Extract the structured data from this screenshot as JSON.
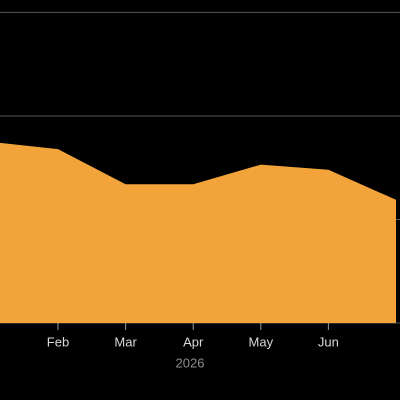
{
  "chart_data": {
    "type": "area",
    "categories": [
      null,
      "Feb",
      "Mar",
      "Apr",
      "May",
      "Jun",
      null
    ],
    "values": [
      175,
      168,
      134,
      134,
      153,
      148,
      119
    ],
    "color": "#f2a33a",
    "ylim": [
      0,
      312
    ],
    "yticks": [
      0,
      100,
      200,
      300
    ],
    "grid": true,
    "xlabel": "2026"
  }
}
